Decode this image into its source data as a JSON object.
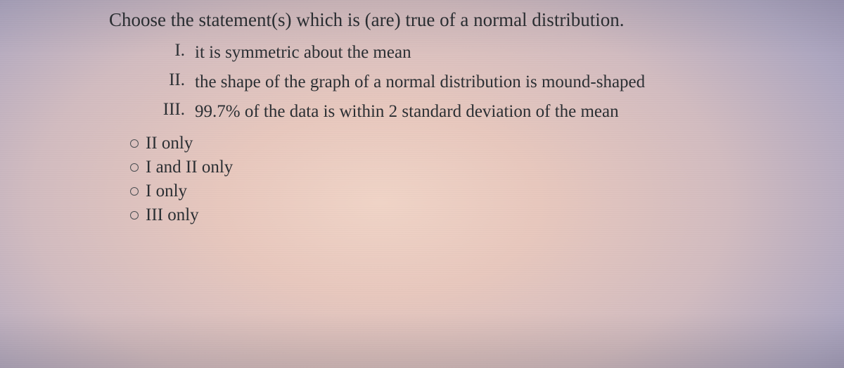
{
  "question": {
    "prompt": "Choose the statement(s) which is (are) true of a normal distribution.",
    "statements": [
      {
        "numeral": "I.",
        "text": "it is symmetric about the mean"
      },
      {
        "numeral": "II.",
        "text": "the shape of the graph of a normal distribution is mound-shaped"
      },
      {
        "numeral": "III.",
        "text": "99.7% of the data is within 2 standard deviation of the mean"
      }
    ],
    "options": [
      {
        "label": "II only"
      },
      {
        "label": "I and II only"
      },
      {
        "label": "I only"
      },
      {
        "label": "III only"
      }
    ]
  },
  "style": {
    "text_color": "#2b2f33",
    "font_family": "Georgia, 'Times New Roman', Times, serif",
    "prompt_fontsize_pt": 20,
    "statement_fontsize_pt": 19,
    "option_fontsize_pt": 19,
    "radio_border_color": "#4a4e52",
    "background_gradient": {
      "type": "radial",
      "center": "45% 55%",
      "stops": [
        {
          "color": "#f0d4c7",
          "at": "0%"
        },
        {
          "color": "#e8c8be",
          "at": "25%"
        },
        {
          "color": "#d2bcc0",
          "at": "55%"
        },
        {
          "color": "#aea7c0",
          "at": "80%"
        },
        {
          "color": "#938fb0",
          "at": "100%"
        }
      ]
    }
  }
}
